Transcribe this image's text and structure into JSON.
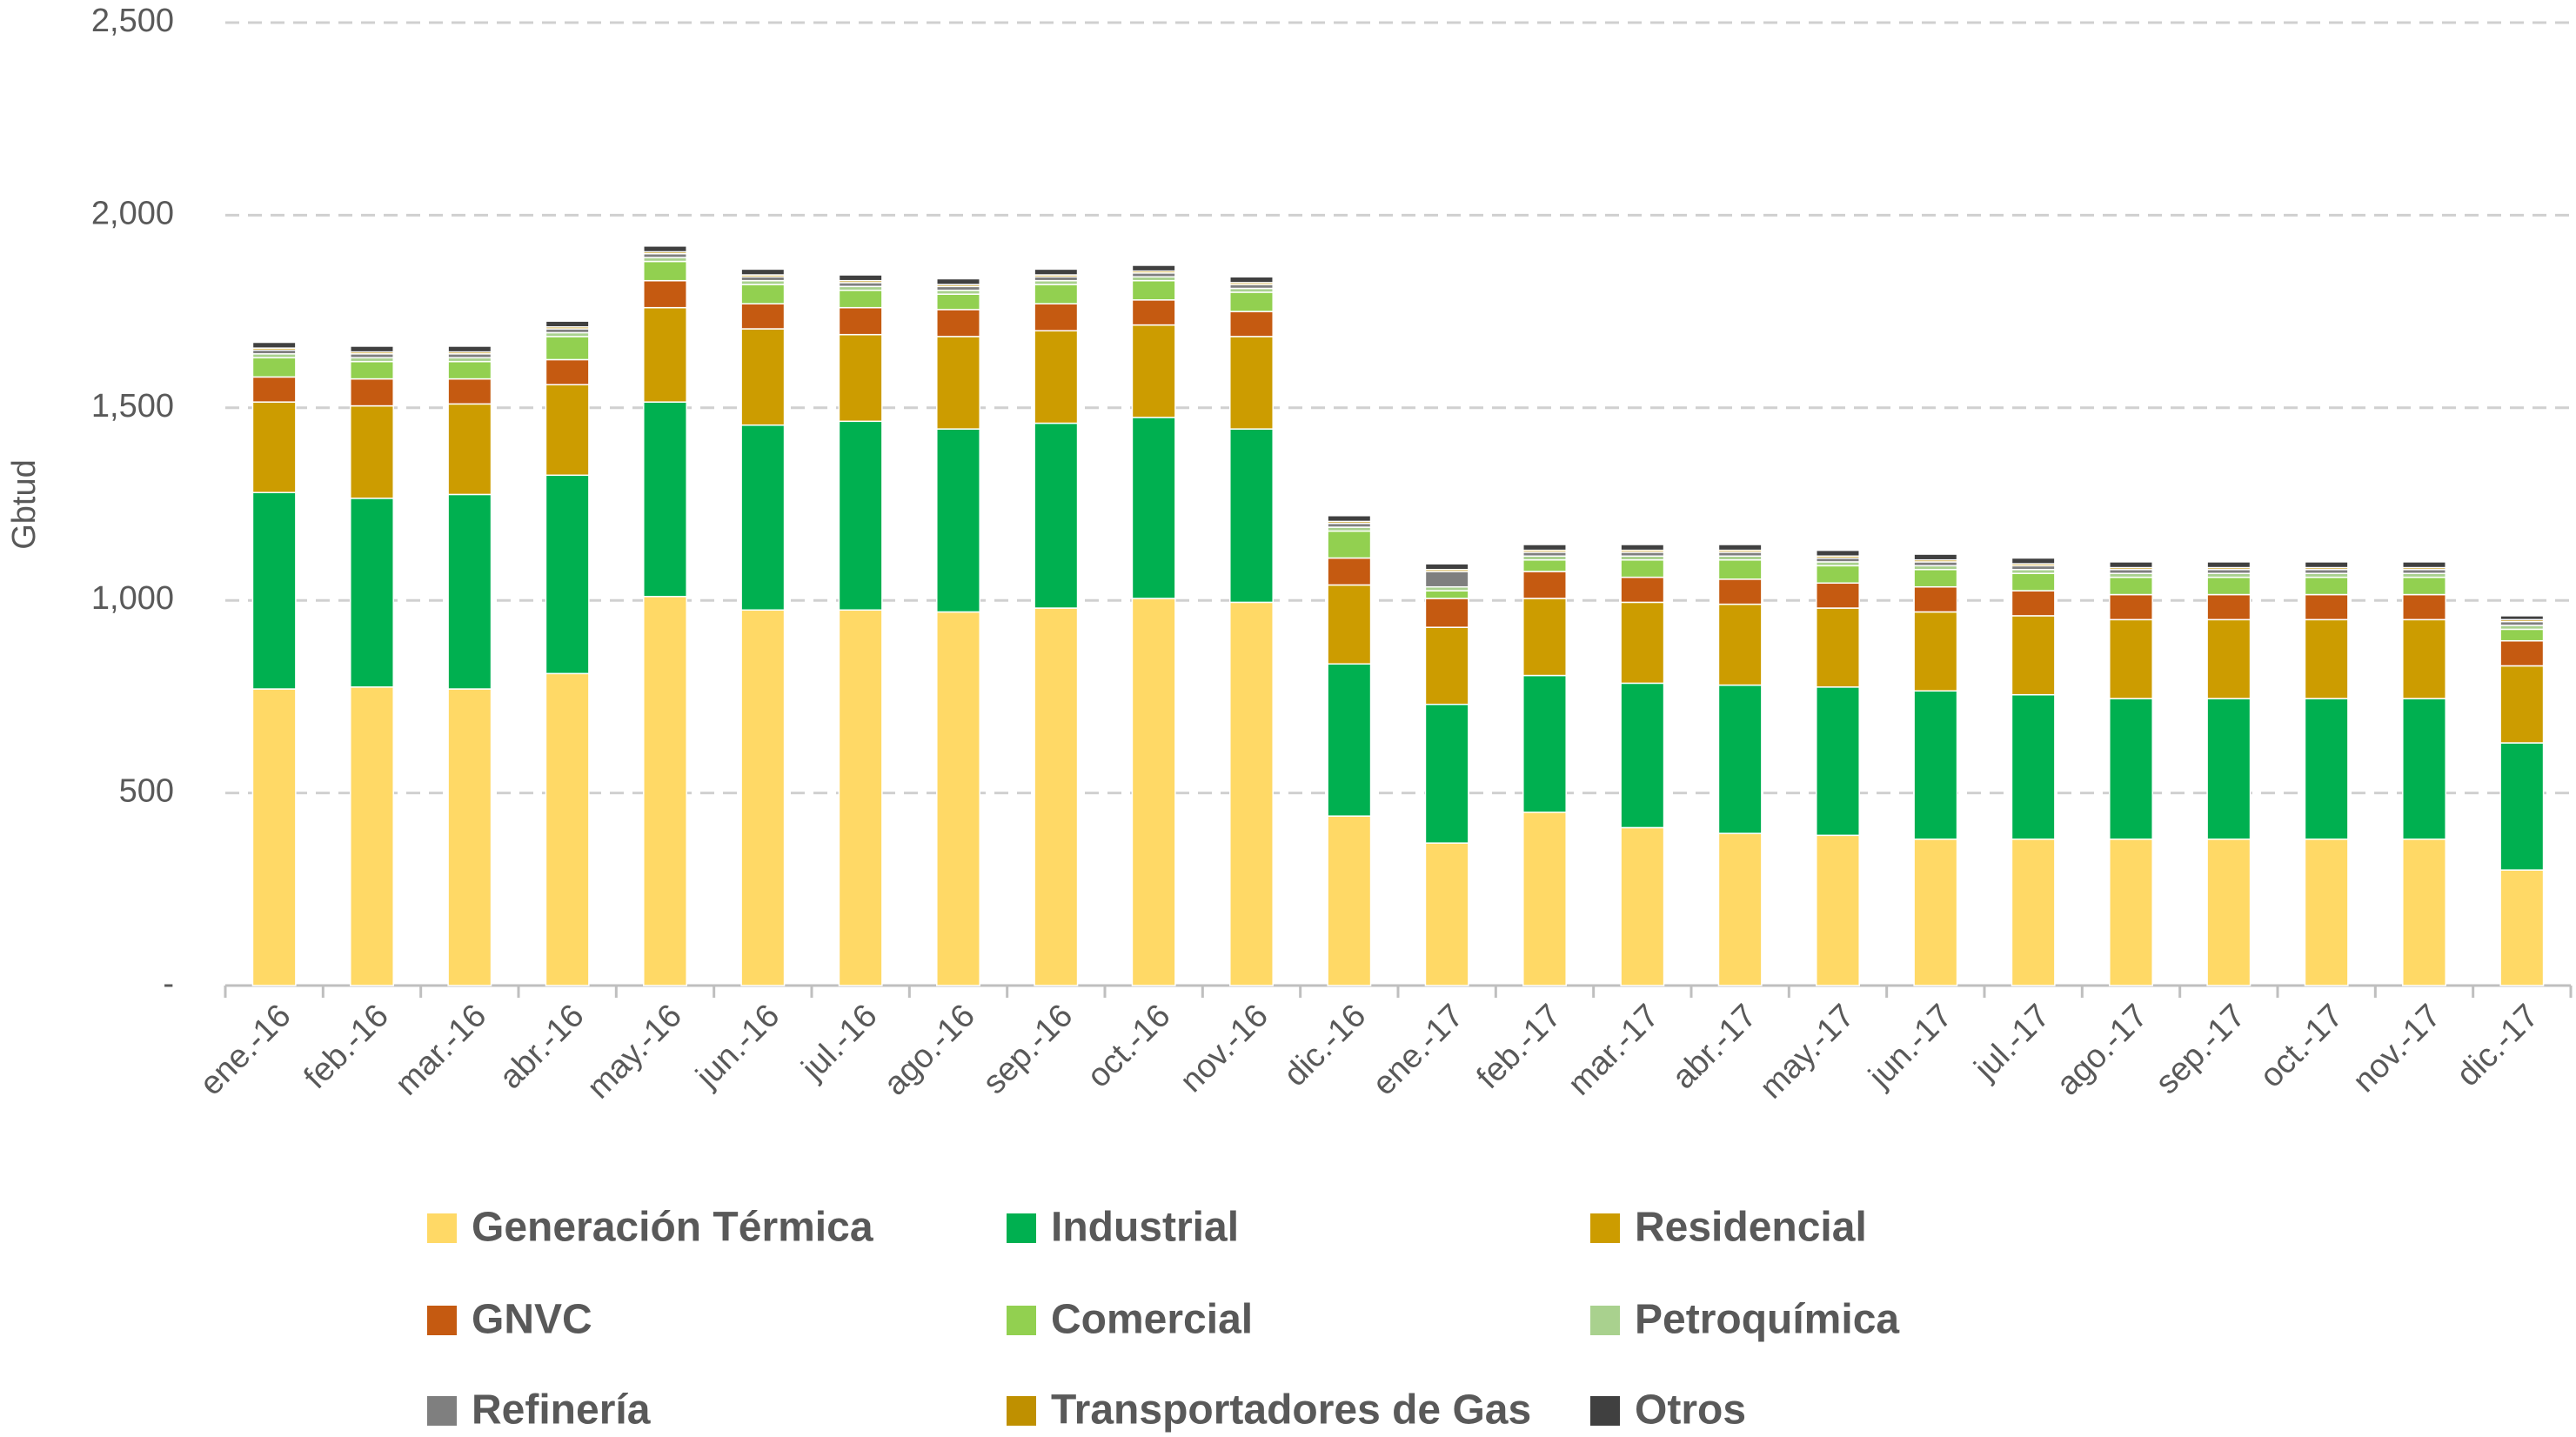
{
  "chart_data": {
    "type": "stacked_bar",
    "ylabel": "Gbtud",
    "categories": [
      "ene.-16",
      "feb.-16",
      "mar.-16",
      "abr.-16",
      "may.-16",
      "jun.-16",
      "jul.-16",
      "ago.-16",
      "sep.-16",
      "oct.-16",
      "nov.-16",
      "dic.-16",
      "ene.-17",
      "feb.-17",
      "mar.-17",
      "abr.-17",
      "may.-17",
      "jun.-17",
      "jul.-17",
      "ago.-17",
      "sep.-17",
      "oct.-17",
      "nov.-17",
      "dic.-17"
    ],
    "series": [
      {
        "name": "Generación Térmica",
        "color": "#ffd966",
        "values": [
          770,
          775,
          770,
          810,
          1010,
          975,
          975,
          970,
          980,
          1005,
          995,
          440,
          370,
          450,
          410,
          395,
          390,
          380,
          380,
          380,
          380,
          380,
          380,
          300
        ]
      },
      {
        "name": "Industrial",
        "color": "#00b050",
        "values": [
          510,
          490,
          505,
          515,
          505,
          480,
          490,
          475,
          480,
          470,
          450,
          395,
          360,
          355,
          375,
          385,
          385,
          385,
          375,
          365,
          365,
          365,
          365,
          330
        ]
      },
      {
        "name": "Residencial",
        "color": "#cc9c00",
        "values": [
          235,
          240,
          235,
          235,
          245,
          250,
          225,
          240,
          240,
          240,
          240,
          205,
          200,
          200,
          210,
          210,
          205,
          205,
          205,
          205,
          205,
          205,
          205,
          200
        ]
      },
      {
        "name": "GNVC",
        "color": "#c55a11",
        "values": [
          65,
          70,
          65,
          65,
          70,
          65,
          70,
          70,
          70,
          65,
          65,
          70,
          75,
          70,
          65,
          65,
          65,
          65,
          65,
          65,
          65,
          65,
          65,
          65
        ]
      },
      {
        "name": "Comercial",
        "color": "#92d050",
        "values": [
          50,
          45,
          45,
          60,
          50,
          50,
          45,
          40,
          50,
          50,
          50,
          70,
          20,
          30,
          45,
          50,
          45,
          45,
          45,
          45,
          45,
          45,
          45,
          30
        ]
      },
      {
        "name": "Petroquímica",
        "color": "#a9d18e",
        "values": [
          10,
          10,
          10,
          10,
          10,
          10,
          10,
          10,
          10,
          10,
          10,
          10,
          10,
          10,
          10,
          10,
          10,
          10,
          10,
          10,
          10,
          10,
          10,
          10
        ]
      },
      {
        "name": "Refinería",
        "color": "#7f7f7f",
        "values": [
          10,
          10,
          10,
          10,
          10,
          10,
          10,
          10,
          10,
          10,
          10,
          10,
          40,
          10,
          10,
          10,
          10,
          10,
          10,
          10,
          10,
          10,
          10,
          10
        ]
      },
      {
        "name": "Transportadores de Gas",
        "color": "#bf9000",
        "values": [
          5,
          5,
          5,
          5,
          5,
          5,
          5,
          5,
          5,
          5,
          5,
          5,
          5,
          5,
          5,
          5,
          5,
          5,
          5,
          5,
          5,
          5,
          5,
          5
        ]
      },
      {
        "name": "Otros",
        "color": "#404040",
        "values": [
          15,
          15,
          15,
          15,
          15,
          15,
          15,
          15,
          15,
          15,
          15,
          15,
          15,
          15,
          15,
          15,
          15,
          15,
          15,
          15,
          15,
          15,
          15,
          10
        ]
      }
    ],
    "ylim": [
      0,
      2500
    ],
    "yticks": [
      {
        "value": 0,
        "label": "-"
      },
      500,
      {
        "value": 1000,
        "label": "1,000"
      },
      {
        "value": 1500,
        "label": "1,500"
      },
      {
        "value": 2000,
        "label": "2,000"
      },
      {
        "value": 2500,
        "label": "2,500"
      }
    ],
    "grid": true,
    "legend": "bottom"
  }
}
